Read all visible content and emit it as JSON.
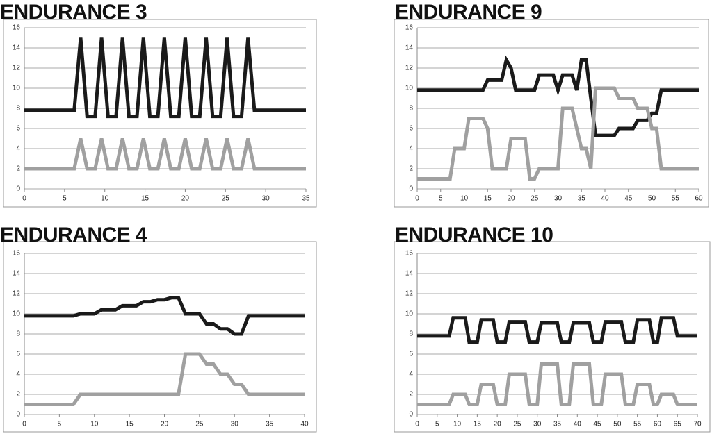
{
  "chart_data": [
    {
      "type": "line",
      "title": "ENDURANCE 3",
      "xlim": [
        0,
        35
      ],
      "xticks": [
        0,
        5,
        10,
        15,
        20,
        25,
        30,
        35
      ],
      "ylim": [
        0,
        16
      ],
      "yticks": [
        0,
        2,
        4,
        6,
        8,
        10,
        12,
        14,
        16
      ],
      "grid": true,
      "series": [
        {
          "color": "#1a1a1a",
          "x": [
            0,
            6.2,
            7,
            7.8,
            8.8,
            9.6,
            10.4,
            11.4,
            12.2,
            13,
            14,
            14.8,
            15.6,
            16.6,
            17.4,
            18.2,
            19.2,
            20,
            20.8,
            21.8,
            22.6,
            23.4,
            24.4,
            25.2,
            26,
            27,
            27.8,
            28.6,
            35
          ],
          "values": [
            7.8,
            7.8,
            15,
            7.2,
            7.2,
            15,
            7.2,
            7.2,
            15,
            7.2,
            7.2,
            15,
            7.2,
            7.2,
            15,
            7.2,
            7.2,
            15,
            7.2,
            7.2,
            15,
            7.2,
            7.2,
            15,
            7.2,
            7.2,
            15,
            7.8,
            7.8
          ]
        },
        {
          "color": "#a0a0a0",
          "x": [
            0,
            6.2,
            7,
            7.8,
            8.8,
            9.6,
            10.4,
            11.4,
            12.2,
            13,
            14,
            14.8,
            15.6,
            16.6,
            17.4,
            18.2,
            19.2,
            20,
            20.8,
            21.8,
            22.6,
            23.4,
            24.4,
            25.2,
            26,
            27,
            27.8,
            28.6,
            35
          ],
          "values": [
            2,
            2,
            5,
            2,
            2,
            5,
            2,
            2,
            5,
            2,
            2,
            5,
            2,
            2,
            5,
            2,
            2,
            5,
            2,
            2,
            5,
            2,
            2,
            5,
            2,
            2,
            5,
            2,
            2
          ]
        }
      ]
    },
    {
      "type": "line",
      "title": "ENDURANCE 9",
      "xlim": [
        0,
        60
      ],
      "xticks": [
        0,
        5,
        10,
        15,
        20,
        25,
        30,
        35,
        40,
        45,
        50,
        55,
        60
      ],
      "ylim": [
        0,
        16
      ],
      "yticks": [
        0,
        2,
        4,
        6,
        8,
        10,
        12,
        14,
        16
      ],
      "grid": true,
      "series": [
        {
          "color": "#1a1a1a",
          "x": [
            0,
            14,
            15,
            18,
            19,
            20,
            21,
            25,
            26,
            29,
            30,
            31,
            33,
            34,
            35,
            36,
            37,
            38,
            42,
            43,
            46,
            47,
            49,
            50,
            51,
            52,
            60
          ],
          "values": [
            9.8,
            9.8,
            10.8,
            10.8,
            12.8,
            12,
            9.8,
            9.8,
            11.3,
            11.3,
            9.8,
            11.3,
            11.3,
            9.8,
            12.8,
            12.8,
            9,
            5.3,
            5.3,
            6,
            6,
            6.8,
            6.8,
            7.5,
            7.5,
            9.8,
            9.8
          ]
        },
        {
          "color": "#a0a0a0",
          "x": [
            0,
            7,
            8,
            10,
            11,
            14,
            15,
            16,
            19,
            20,
            23,
            24,
            25,
            26,
            30,
            31,
            33,
            34,
            35,
            36,
            37,
            38,
            42,
            43,
            46,
            47,
            49,
            50,
            51,
            52,
            60
          ],
          "values": [
            1,
            1,
            4,
            4,
            7,
            7,
            6,
            2,
            2,
            5,
            5,
            1,
            1,
            2,
            2,
            8,
            8,
            6,
            4,
            4,
            2,
            10,
            10,
            9,
            9,
            8,
            8,
            6,
            6,
            2,
            2
          ]
        }
      ]
    },
    {
      "type": "line",
      "title": "ENDURANCE 4",
      "xlim": [
        0,
        40
      ],
      "xticks": [
        0,
        5,
        10,
        15,
        20,
        25,
        30,
        35,
        40
      ],
      "ylim": [
        0,
        16
      ],
      "yticks": [
        0,
        2,
        4,
        6,
        8,
        10,
        12,
        14,
        16
      ],
      "grid": true,
      "series": [
        {
          "color": "#1a1a1a",
          "x": [
            0,
            7,
            8,
            10,
            11,
            13,
            14,
            16,
            17,
            18,
            19,
            20,
            21,
            22,
            23,
            25,
            26,
            27,
            28,
            29,
            30,
            31,
            32,
            40
          ],
          "values": [
            9.8,
            9.8,
            10,
            10,
            10.4,
            10.4,
            10.8,
            10.8,
            11.2,
            11.2,
            11.4,
            11.4,
            11.6,
            11.6,
            10,
            10,
            9,
            9,
            8.5,
            8.5,
            8,
            8,
            9.8,
            9.8
          ]
        },
        {
          "color": "#a0a0a0",
          "x": [
            0,
            7,
            8,
            22,
            23,
            25,
            26,
            27,
            28,
            29,
            30,
            31,
            32,
            40
          ],
          "values": [
            1,
            1,
            2,
            2,
            6,
            6,
            5,
            5,
            4,
            4,
            3,
            3,
            2,
            2
          ]
        }
      ]
    },
    {
      "type": "line",
      "title": "ENDURANCE 10",
      "xlim": [
        0,
        70
      ],
      "xticks": [
        0,
        5,
        10,
        15,
        20,
        25,
        30,
        35,
        40,
        45,
        50,
        55,
        60,
        65,
        70
      ],
      "ylim": [
        0,
        16
      ],
      "yticks": [
        0,
        2,
        4,
        6,
        8,
        10,
        12,
        14,
        16
      ],
      "grid": true,
      "series": [
        {
          "color": "#1a1a1a",
          "x": [
            0,
            8,
            9,
            12,
            13,
            15,
            16,
            19,
            20,
            22,
            23,
            27,
            28,
            30,
            31,
            35,
            36,
            38,
            39,
            43,
            44,
            46,
            47,
            51,
            52,
            54,
            55,
            58,
            59,
            60,
            61,
            64,
            65,
            70
          ],
          "values": [
            7.8,
            7.8,
            9.6,
            9.6,
            7.2,
            7.2,
            9.4,
            9.4,
            7.2,
            7.2,
            9.2,
            9.2,
            7.2,
            7.2,
            9.1,
            9.1,
            7.2,
            7.2,
            9.1,
            9.1,
            7.2,
            7.2,
            9.2,
            9.2,
            7.2,
            7.2,
            9.4,
            9.4,
            7.2,
            7.2,
            9.6,
            9.6,
            7.8,
            7.8
          ]
        },
        {
          "color": "#a0a0a0",
          "x": [
            0,
            8,
            9,
            12,
            13,
            15,
            16,
            19,
            20,
            22,
            23,
            27,
            28,
            30,
            31,
            35,
            36,
            38,
            39,
            43,
            44,
            46,
            47,
            51,
            52,
            54,
            55,
            58,
            59,
            60,
            61,
            64,
            65,
            70
          ],
          "values": [
            1,
            1,
            2,
            2,
            1,
            1,
            3,
            3,
            1,
            1,
            4,
            4,
            1,
            1,
            5,
            5,
            1,
            1,
            5,
            5,
            1,
            1,
            4,
            4,
            1,
            1,
            3,
            3,
            1,
            1,
            2,
            2,
            1,
            1
          ]
        }
      ]
    }
  ]
}
